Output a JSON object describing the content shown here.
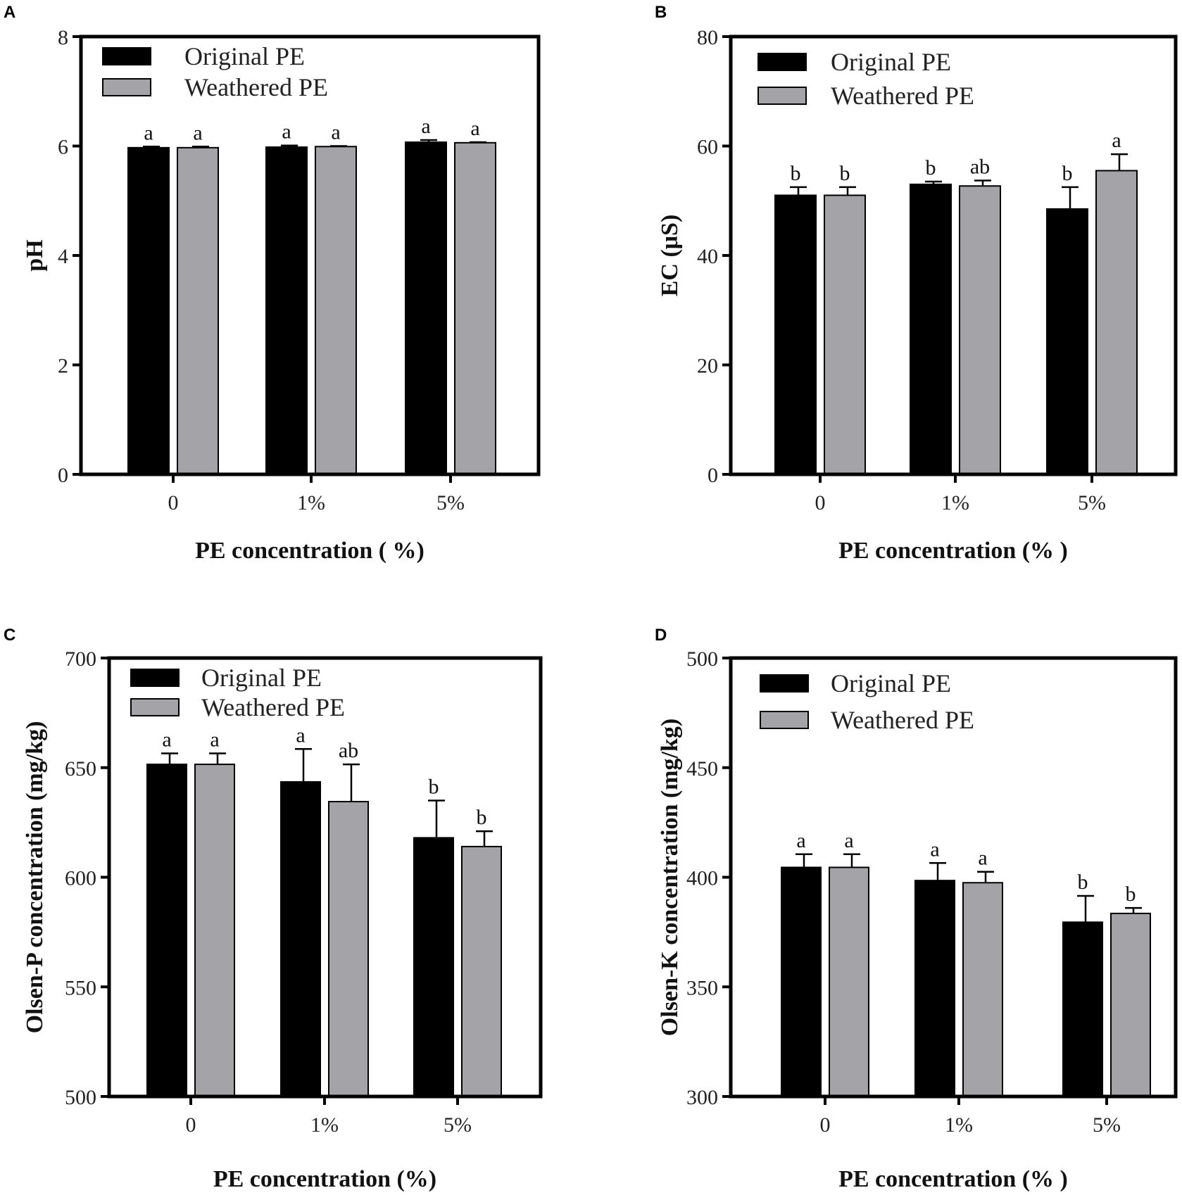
{
  "colors": {
    "original": "#000000",
    "weathered": "#a3a3a8",
    "frame": "#000000"
  },
  "chart_data": [
    {
      "panel": "A",
      "type": "bar",
      "categories": [
        "0",
        "1%",
        "5%"
      ],
      "series": [
        {
          "name": "Original PE",
          "values": [
            5.97,
            5.98,
            6.07
          ],
          "errors": [
            0.02,
            0.03,
            0.04
          ],
          "letters": [
            "a",
            "a",
            "a"
          ]
        },
        {
          "name": "Weathered PE",
          "values": [
            5.97,
            5.99,
            6.06
          ],
          "errors": [
            0.02,
            0.01,
            0.01
          ],
          "letters": [
            "a",
            "a",
            "a"
          ]
        }
      ],
      "ylabel": "pH",
      "xlabel": "PE concentration ( %)",
      "ylim": [
        0,
        8
      ],
      "yticks": [
        "0",
        "2",
        "4",
        "6",
        "8"
      ],
      "legend": "top-left"
    },
    {
      "panel": "B",
      "type": "bar",
      "categories": [
        "0",
        "1%",
        "5%"
      ],
      "series": [
        {
          "name": "Original PE",
          "values": [
            51.0,
            53.0,
            48.5
          ],
          "errors": [
            1.5,
            0.5,
            4.0
          ],
          "letters": [
            "b",
            "b",
            "b"
          ]
        },
        {
          "name": "Weathered PE",
          "values": [
            51.0,
            52.7,
            55.5
          ],
          "errors": [
            1.5,
            1.0,
            3.0
          ],
          "letters": [
            "b",
            "ab",
            "a"
          ]
        }
      ],
      "ylabel": "EC (μS)",
      "xlabel": "PE concentration (% )",
      "ylim": [
        0,
        80
      ],
      "yticks": [
        "0",
        "20",
        "40",
        "60",
        "80"
      ],
      "legend": "top-left"
    },
    {
      "panel": "C",
      "type": "bar",
      "categories": [
        "0",
        "1%",
        "5%"
      ],
      "series": [
        {
          "name": "Original PE",
          "values": [
            651.5,
            643.5,
            618.0
          ],
          "errors": [
            5.0,
            15.0,
            17.0
          ],
          "letters": [
            "a",
            "a",
            "b"
          ]
        },
        {
          "name": "Weathered PE",
          "values": [
            651.5,
            634.5,
            614.0
          ],
          "errors": [
            5.0,
            17.0,
            7.0
          ],
          "letters": [
            "a",
            "ab",
            "b"
          ]
        }
      ],
      "ylabel": "Olsen-P concentration (mg/kg)",
      "xlabel": "PE concentration (%)",
      "ylim": [
        500,
        700
      ],
      "yticks": [
        "500",
        "550",
        "600",
        "650",
        "700"
      ],
      "legend": "top-left"
    },
    {
      "panel": "D",
      "type": "bar",
      "categories": [
        "0",
        "1%",
        "5%"
      ],
      "series": [
        {
          "name": "Original PE",
          "values": [
            404.5,
            398.5,
            379.5
          ],
          "errors": [
            6.0,
            8.0,
            12.0
          ],
          "letters": [
            "a",
            "a",
            "b"
          ]
        },
        {
          "name": "Weathered PE",
          "values": [
            404.5,
            397.5,
            383.5
          ],
          "errors": [
            6.0,
            5.0,
            2.5
          ],
          "letters": [
            "a",
            "a",
            "b"
          ]
        }
      ],
      "ylabel": "Olsen-K concentration (mg/kg)",
      "xlabel": "PE concentration (% )",
      "ylim": [
        300,
        500
      ],
      "yticks": [
        "300",
        "350",
        "400",
        "450",
        "500"
      ],
      "legend": "top-left"
    }
  ]
}
